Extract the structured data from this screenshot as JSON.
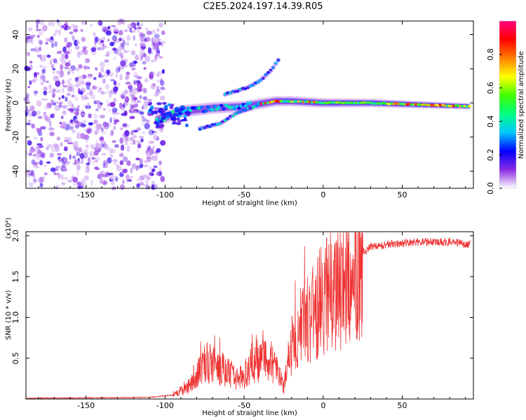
{
  "page_title": "C2E5.2024.197.14.39.R05",
  "chart_data": [
    {
      "type": "heatmap",
      "xlabel": "Height of straight line (km)",
      "ylabel": "Frequency (Hz)",
      "xlim": [
        -188,
        95
      ],
      "ylim": [
        -50,
        48
      ],
      "x_ticks": [
        -150,
        -100,
        -50,
        0,
        50
      ],
      "y_ticks": [
        -40,
        -20,
        0,
        20,
        40
      ],
      "colorbar": {
        "label": "Normalized spectral amplitude",
        "range": [
          0,
          1
        ],
        "ticks": [
          0.0,
          0.2,
          0.4,
          0.6,
          0.8
        ],
        "colormap": [
          "#ffffff",
          "#8a2be2",
          "#0000ff",
          "#00c8ff",
          "#00ff80",
          "#40ff00",
          "#ffff00",
          "#ff8000",
          "#ff0000",
          "#ff0080"
        ]
      },
      "features": {
        "noise_region_x": [
          -188,
          -105
        ],
        "main_trace": [
          {
            "x": -105,
            "y": -10
          },
          {
            "x": -90,
            "y": -5
          },
          {
            "x": -70,
            "y": -3
          },
          {
            "x": -50,
            "y": -2
          },
          {
            "x": -30,
            "y": 1
          },
          {
            "x": -20,
            "y": 1
          },
          {
            "x": 0,
            "y": 0
          },
          {
            "x": 30,
            "y": 0
          },
          {
            "x": 60,
            "y": -1
          },
          {
            "x": 93,
            "y": -2
          }
        ],
        "upper_branch": [
          {
            "x": -62,
            "y": 5
          },
          {
            "x": -48,
            "y": 9
          },
          {
            "x": -40,
            "y": 13
          },
          {
            "x": -33,
            "y": 19
          },
          {
            "x": -27,
            "y": 27
          }
        ],
        "lower_branch": [
          {
            "x": -78,
            "y": -15
          },
          {
            "x": -65,
            "y": -12
          },
          {
            "x": -55,
            "y": -6
          },
          {
            "x": -45,
            "y": -3
          }
        ]
      }
    },
    {
      "type": "line",
      "xlabel": "Height of straight line (km)",
      "ylabel": "SNR (10 * v/v)",
      "y_multiplier": "(x10⁴)",
      "xlim": [
        -188,
        95
      ],
      "ylim": [
        0,
        2.05
      ],
      "x_ticks": [
        -150,
        -100,
        -50,
        0,
        50
      ],
      "y_ticks": [
        0.5,
        1.0,
        1.5,
        2.0
      ],
      "y_tick_labels": [
        "0.5",
        "1.0",
        "1.5",
        "2.0"
      ],
      "line_color": "#ee3333",
      "envelope": [
        {
          "x": -188,
          "y": 0.01
        },
        {
          "x": -110,
          "y": 0.02
        },
        {
          "x": -95,
          "y": 0.05
        },
        {
          "x": -85,
          "y": 0.15
        },
        {
          "x": -80,
          "y": 0.3
        },
        {
          "x": -75,
          "y": 0.5
        },
        {
          "x": -70,
          "y": 0.45
        },
        {
          "x": -60,
          "y": 0.35
        },
        {
          "x": -55,
          "y": 0.25
        },
        {
          "x": -50,
          "y": 0.3
        },
        {
          "x": -45,
          "y": 0.45
        },
        {
          "x": -40,
          "y": 0.5
        },
        {
          "x": -35,
          "y": 0.55
        },
        {
          "x": -30,
          "y": 0.4
        },
        {
          "x": -25,
          "y": 0.15
        },
        {
          "x": -20,
          "y": 0.7
        },
        {
          "x": -15,
          "y": 0.95
        },
        {
          "x": -10,
          "y": 1.05
        },
        {
          "x": -5,
          "y": 1.15
        },
        {
          "x": 0,
          "y": 1.35
        },
        {
          "x": 5,
          "y": 1.3
        },
        {
          "x": 10,
          "y": 1.45
        },
        {
          "x": 15,
          "y": 1.55
        },
        {
          "x": 20,
          "y": 1.7
        },
        {
          "x": 25,
          "y": 1.8
        },
        {
          "x": 30,
          "y": 1.87
        },
        {
          "x": 40,
          "y": 1.9
        },
        {
          "x": 60,
          "y": 1.93
        },
        {
          "x": 80,
          "y": 1.93
        },
        {
          "x": 93,
          "y": 1.9
        }
      ]
    }
  ]
}
